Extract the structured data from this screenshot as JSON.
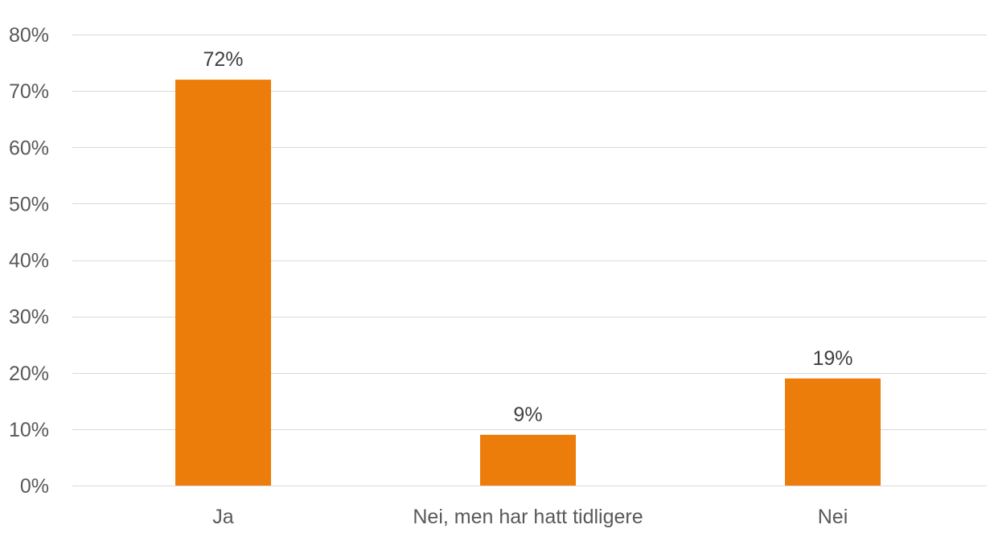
{
  "chart_data": {
    "type": "bar",
    "categories": [
      "Ja",
      "Nei, men har hatt tidligere",
      "Nei"
    ],
    "values": [
      72,
      9,
      19
    ],
    "data_labels": [
      "72%",
      "9%",
      "19%"
    ],
    "title": "",
    "xlabel": "",
    "ylabel": "",
    "ylim": [
      0,
      80
    ],
    "yticks": [
      0,
      10,
      20,
      30,
      40,
      50,
      60,
      70,
      80
    ],
    "ytick_labels": [
      "0%",
      "10%",
      "20%",
      "30%",
      "40%",
      "50%",
      "60%",
      "70%",
      "80%"
    ],
    "grid": true,
    "legend": "none",
    "colors": {
      "bar": "#ED7D0A",
      "grid": "#D9D9D9",
      "axis_text": "#595959",
      "data_label_text": "#404040"
    }
  }
}
